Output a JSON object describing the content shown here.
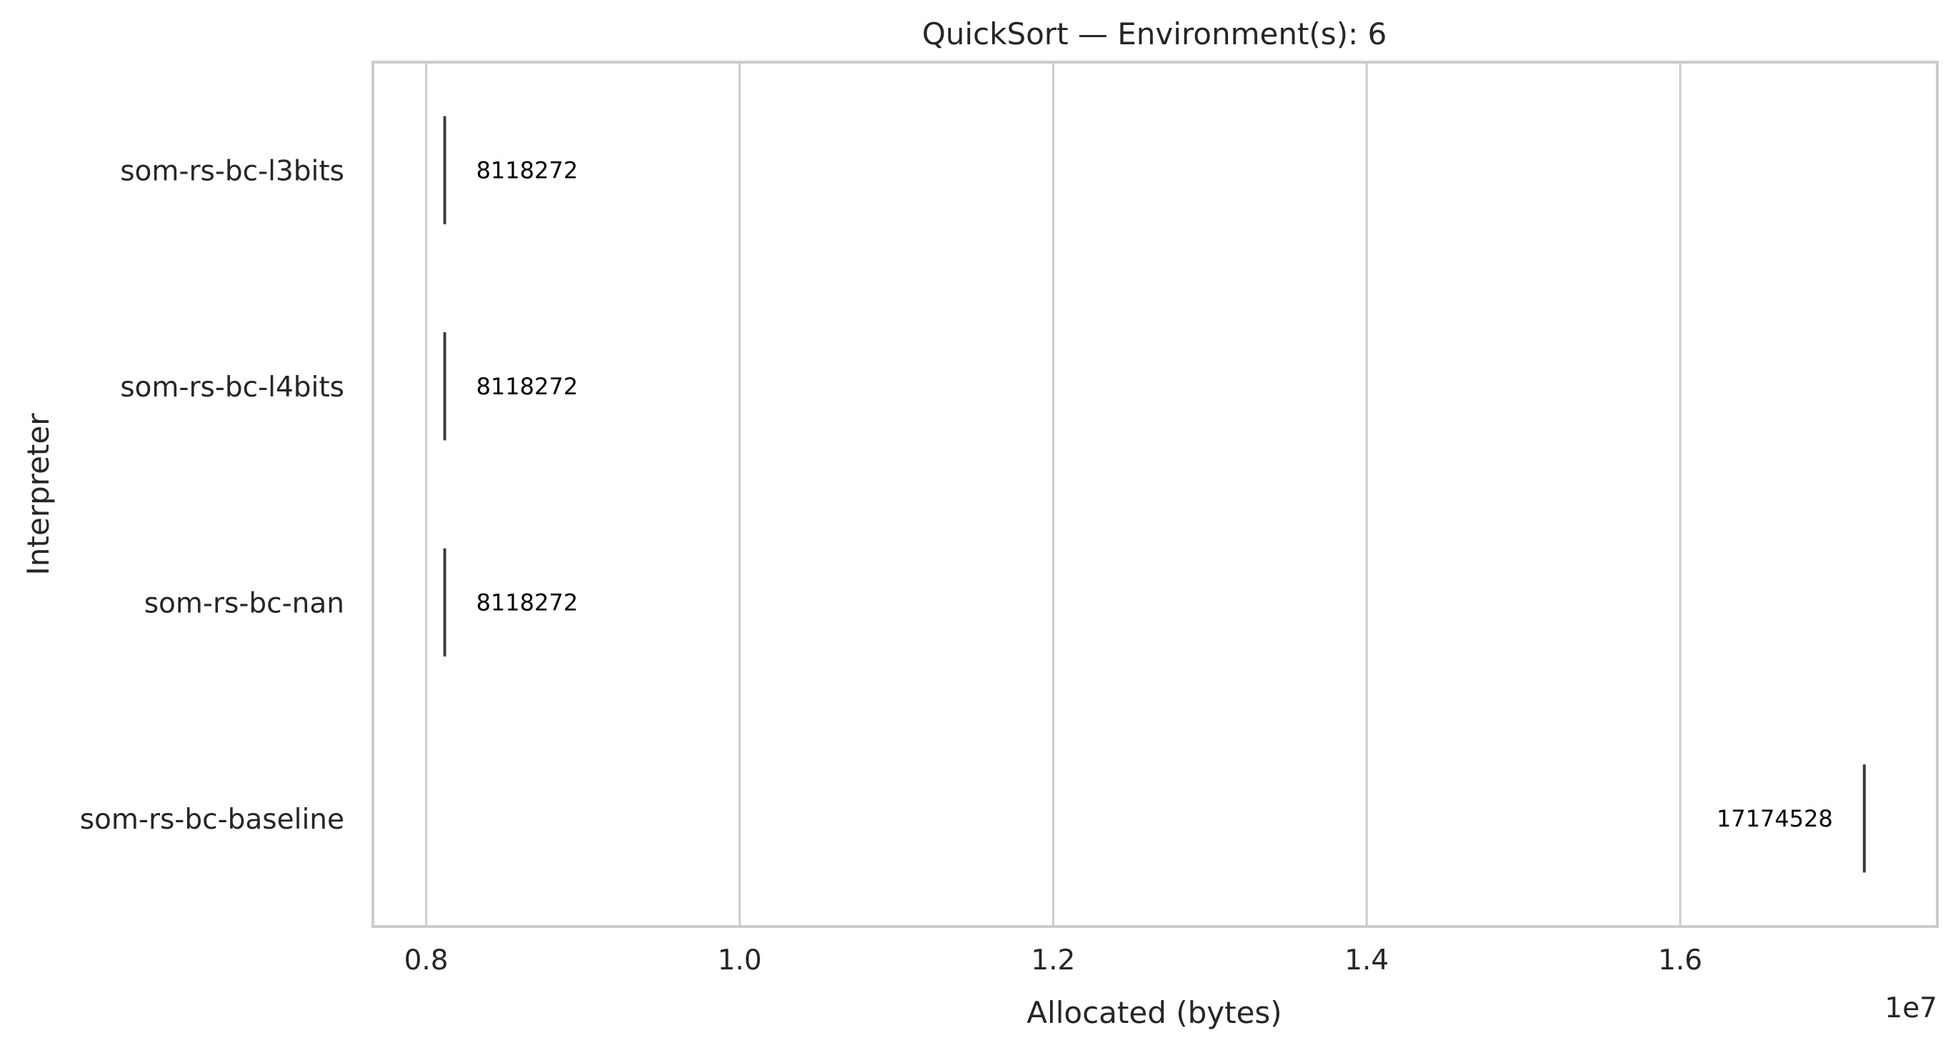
{
  "chart_data": {
    "type": "bar",
    "orientation": "horizontal",
    "title": "QuickSort — Environment(s): 6",
    "xlabel": "Allocated (bytes)",
    "ylabel": "Interpreter",
    "x_offset_label": "1e7",
    "x_scale": 10000000,
    "xlim": [
      7660000,
      17640000
    ],
    "x_ticks": [
      8000000,
      10000000,
      12000000,
      14000000,
      16000000
    ],
    "x_tick_labels": [
      "0.8",
      "1.0",
      "1.2",
      "1.4",
      "1.6"
    ],
    "grid": true,
    "categories": [
      "som-rs-bc-l3bits",
      "som-rs-bc-l4bits",
      "som-rs-bc-nan",
      "som-rs-bc-baseline"
    ],
    "values": [
      8118272,
      8118272,
      8118272,
      17174528
    ],
    "data_labels": [
      "8118272",
      "8118272",
      "8118272",
      "17174528"
    ],
    "colors": {
      "grid": "#cccccc",
      "spine": "#cccccc",
      "mark": "#3d3d3d",
      "text": "#262626",
      "label": "#000000"
    }
  }
}
